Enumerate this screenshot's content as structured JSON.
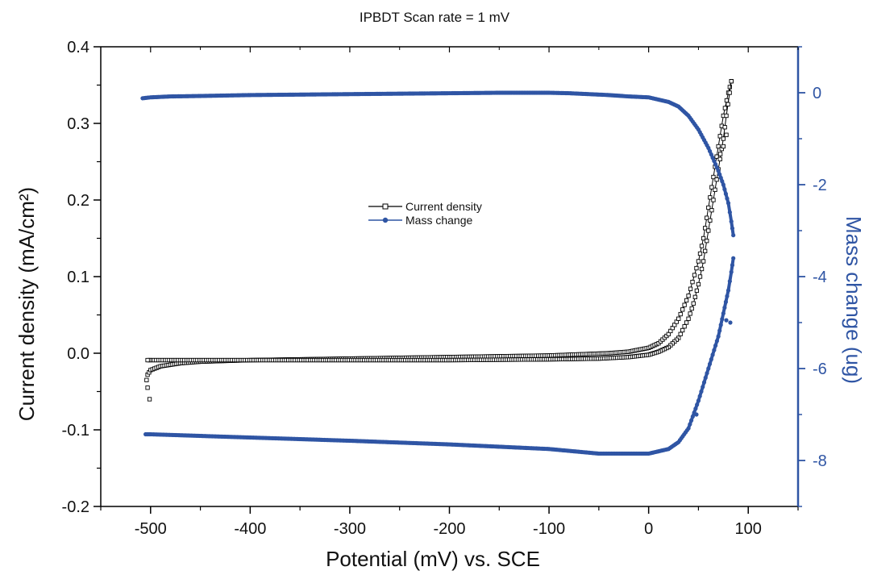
{
  "chart_data": {
    "type": "line",
    "title": "IPBDT Scan rate = 1 mV",
    "xlabel": "Potential (mV) vs. SCE",
    "ylabel": "Current density (mA/cm²)",
    "y2label": "Mass change (ug)",
    "xlim": [
      -550,
      150
    ],
    "ylim": [
      -0.2,
      0.4
    ],
    "y2lim": [
      -9,
      1
    ],
    "xticks": [
      -500,
      -400,
      -300,
      -200,
      -100,
      0,
      100
    ],
    "xtick_labels": [
      "-500",
      "-400",
      "-300",
      "-200",
      "-100",
      "0",
      "100"
    ],
    "yticks": [
      -0.2,
      -0.1,
      0.0,
      0.1,
      0.2,
      0.3,
      0.4
    ],
    "ytick_labels": [
      "-0.2",
      "-0.1",
      "0.0",
      "0.1",
      "0.2",
      "0.3",
      "0.4"
    ],
    "y2ticks": [
      0,
      -2,
      -4,
      -6,
      -8
    ],
    "y2tick_labels": [
      "0",
      "-2",
      "-4",
      "-6",
      "-8"
    ],
    "legend_position": "center-left",
    "grid": false,
    "series": [
      {
        "name": "Current density",
        "axis": "left",
        "color": "#000000",
        "marker": "open-square",
        "forward": {
          "x": [
            -503,
            -500,
            -490,
            -470,
            -450,
            -400,
            -350,
            -300,
            -250,
            -200,
            -150,
            -100,
            -60,
            -40,
            -20,
            0,
            10,
            20,
            30,
            40,
            50,
            55,
            60,
            65,
            70,
            75,
            80,
            83
          ],
          "y": [
            -0.028,
            -0.022,
            -0.017,
            -0.013,
            -0.011,
            -0.009,
            -0.008,
            -0.007,
            -0.006,
            -0.005,
            -0.004,
            -0.003,
            -0.001,
            0.0,
            0.002,
            0.007,
            0.013,
            0.025,
            0.045,
            0.075,
            0.12,
            0.15,
            0.19,
            0.23,
            0.27,
            0.31,
            0.34,
            0.355
          ]
        },
        "reverse": {
          "x": [
            83,
            78,
            75,
            70,
            65,
            60,
            55,
            50,
            45,
            40,
            30,
            20,
            10,
            0,
            -20,
            -50,
            -100,
            -200,
            -300,
            -400,
            -500,
            -503
          ],
          "y": [
            0.355,
            0.31,
            0.28,
            0.24,
            0.2,
            0.16,
            0.12,
            0.09,
            0.065,
            0.045,
            0.02,
            0.008,
            0.002,
            -0.002,
            -0.005,
            -0.007,
            -0.008,
            -0.009,
            -0.009,
            -0.009,
            -0.009,
            -0.009
          ]
        },
        "outliers": {
          "x": [
            -503,
            -501,
            -504,
            72,
            75,
            78
          ],
          "y": [
            -0.045,
            -0.06,
            -0.035,
            0.26,
            0.27,
            0.285
          ]
        }
      },
      {
        "name": "Mass change",
        "axis": "right",
        "color": "#2f55a4",
        "marker": "filled-circle",
        "upper": {
          "x": [
            -508,
            -500,
            -480,
            -450,
            -400,
            -350,
            -300,
            -250,
            -200,
            -150,
            -120,
            -100,
            -80,
            -60,
            -40,
            -20,
            0,
            20,
            30,
            40,
            50,
            60,
            70,
            75,
            80,
            83,
            85
          ],
          "y": [
            -0.12,
            -0.1,
            -0.08,
            -0.07,
            -0.05,
            -0.04,
            -0.03,
            -0.02,
            -0.01,
            0.0,
            0.0,
            0.0,
            -0.01,
            -0.03,
            -0.05,
            -0.08,
            -0.1,
            -0.2,
            -0.3,
            -0.5,
            -0.8,
            -1.2,
            -1.7,
            -2.0,
            -2.4,
            -2.8,
            -3.1
          ]
        },
        "lower": {
          "x": [
            85,
            83,
            80,
            75,
            70,
            60,
            50,
            40,
            30,
            20,
            10,
            0,
            -20,
            -50,
            -100,
            -200,
            -300,
            -400,
            -500,
            -505
          ],
          "y": [
            -3.6,
            -3.9,
            -4.3,
            -4.8,
            -5.3,
            -6.0,
            -6.7,
            -7.3,
            -7.6,
            -7.75,
            -7.8,
            -7.85,
            -7.85,
            -7.85,
            -7.75,
            -7.65,
            -7.57,
            -7.5,
            -7.43,
            -7.43
          ]
        },
        "outliers": {
          "x": [
            78,
            82,
            48
          ],
          "y": [
            -4.95,
            -5.0,
            -7.0
          ]
        }
      }
    ]
  }
}
